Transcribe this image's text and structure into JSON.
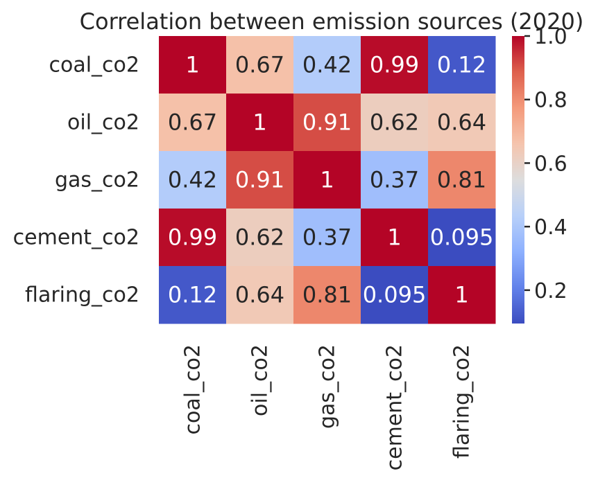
{
  "chart_data": {
    "type": "heatmap",
    "title": "Correlation between emission sources (2020)",
    "row_labels": [
      "coal_co2",
      "oil_co2",
      "gas_co2",
      "cement_co2",
      "flaring_co2"
    ],
    "col_labels": [
      "coal_co2",
      "oil_co2",
      "gas_co2",
      "cement_co2",
      "flaring_co2"
    ],
    "values": [
      [
        1,
        0.67,
        0.42,
        0.99,
        0.12
      ],
      [
        0.67,
        1,
        0.91,
        0.62,
        0.64
      ],
      [
        0.42,
        0.91,
        1,
        0.37,
        0.81
      ],
      [
        0.99,
        0.62,
        0.37,
        1,
        0.095
      ],
      [
        0.12,
        0.64,
        0.81,
        0.095,
        1
      ]
    ],
    "colormap": "coolwarm",
    "colorbar": {
      "vmin": 0.095,
      "vmax": 1.0,
      "ticks": [
        0.2,
        0.4,
        0.6,
        0.8,
        1.0
      ],
      "tick_labels": [
        "0.2",
        "0.4",
        "0.6",
        "0.8",
        "1.0"
      ]
    },
    "annotations": true,
    "annotation_text_dark": "#262626",
    "annotation_text_light": "#ffffff"
  }
}
